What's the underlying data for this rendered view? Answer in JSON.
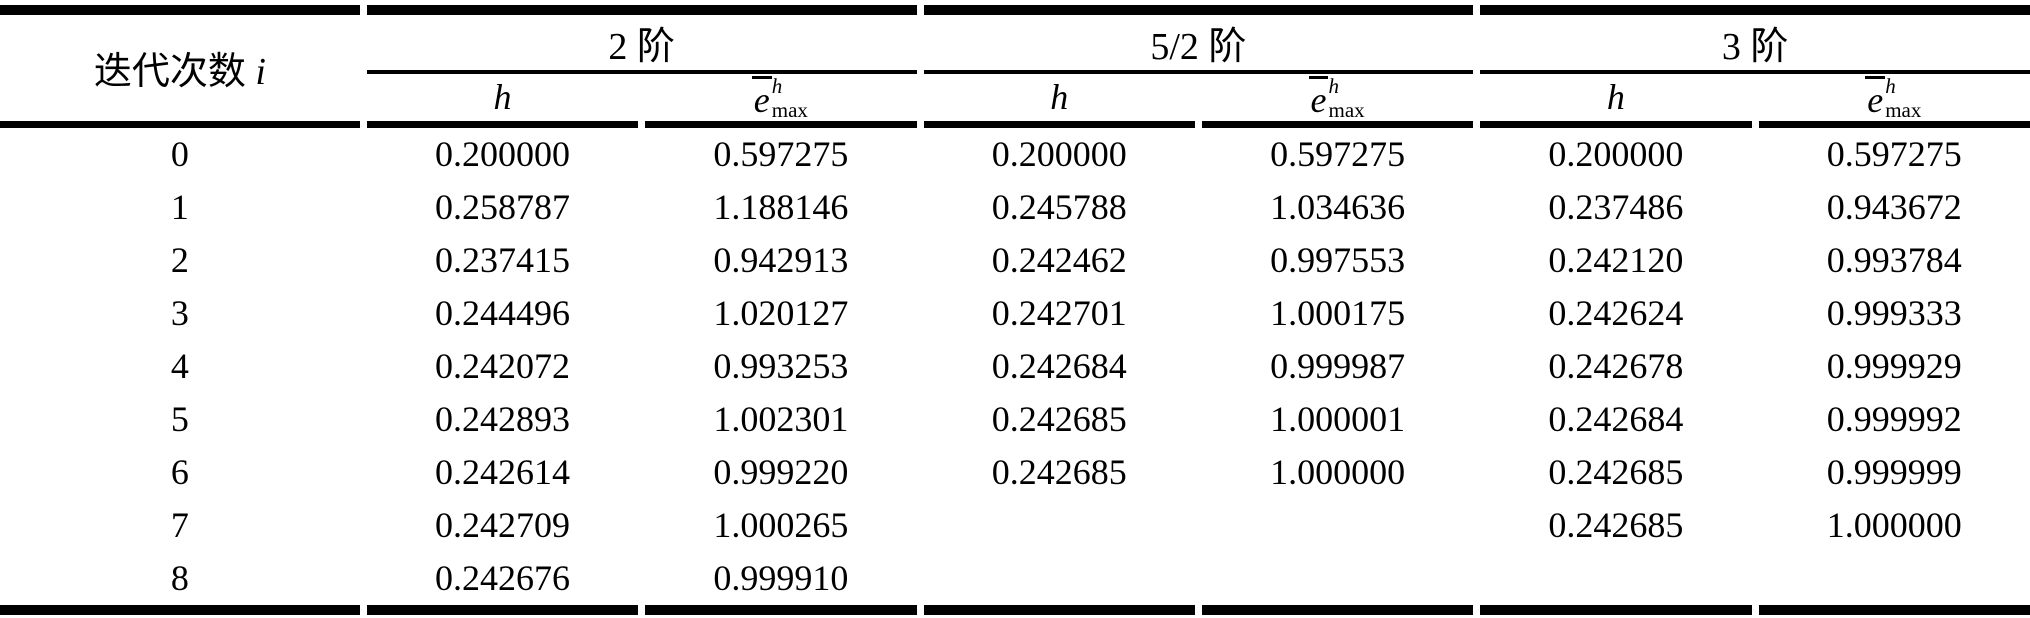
{
  "colors": {
    "text": "#000000",
    "rule": "#000000",
    "background": "#ffffff"
  },
  "table": {
    "corner_header": {
      "text_cn": "迭代次数",
      "text_var": "i"
    },
    "groups": [
      {
        "label": "2 阶"
      },
      {
        "label": "5/2 阶"
      },
      {
        "label": "3 阶"
      }
    ],
    "sub": {
      "h_label": "h",
      "e_base": "e",
      "e_sup": "h",
      "e_sub": "max"
    },
    "rows": [
      {
        "i": "0",
        "g1h": "0.200000",
        "g1e": "0.597275",
        "g2h": "0.200000",
        "g2e": "0.597275",
        "g3h": "0.200000",
        "g3e": "0.597275"
      },
      {
        "i": "1",
        "g1h": "0.258787",
        "g1e": "1.188146",
        "g2h": "0.245788",
        "g2e": "1.034636",
        "g3h": "0.237486",
        "g3e": "0.943672"
      },
      {
        "i": "2",
        "g1h": "0.237415",
        "g1e": "0.942913",
        "g2h": "0.242462",
        "g2e": "0.997553",
        "g3h": "0.242120",
        "g3e": "0.993784"
      },
      {
        "i": "3",
        "g1h": "0.244496",
        "g1e": "1.020127",
        "g2h": "0.242701",
        "g2e": "1.000175",
        "g3h": "0.242624",
        "g3e": "0.999333"
      },
      {
        "i": "4",
        "g1h": "0.242072",
        "g1e": "0.993253",
        "g2h": "0.242684",
        "g2e": "0.999987",
        "g3h": "0.242678",
        "g3e": "0.999929"
      },
      {
        "i": "5",
        "g1h": "0.242893",
        "g1e": "1.002301",
        "g2h": "0.242685",
        "g2e": "1.000001",
        "g3h": "0.242684",
        "g3e": "0.999992"
      },
      {
        "i": "6",
        "g1h": "0.242614",
        "g1e": "0.999220",
        "g2h": "0.242685",
        "g2e": "1.000000",
        "g3h": "0.242685",
        "g3e": "0.999999"
      },
      {
        "i": "7",
        "g1h": "0.242709",
        "g1e": "1.000265",
        "g2h": "",
        "g2e": "",
        "g3h": "0.242685",
        "g3e": "1.000000"
      },
      {
        "i": "8",
        "g1h": "0.242676",
        "g1e": "0.999910",
        "g2h": "",
        "g2e": "",
        "g3h": "",
        "g3e": ""
      }
    ]
  }
}
